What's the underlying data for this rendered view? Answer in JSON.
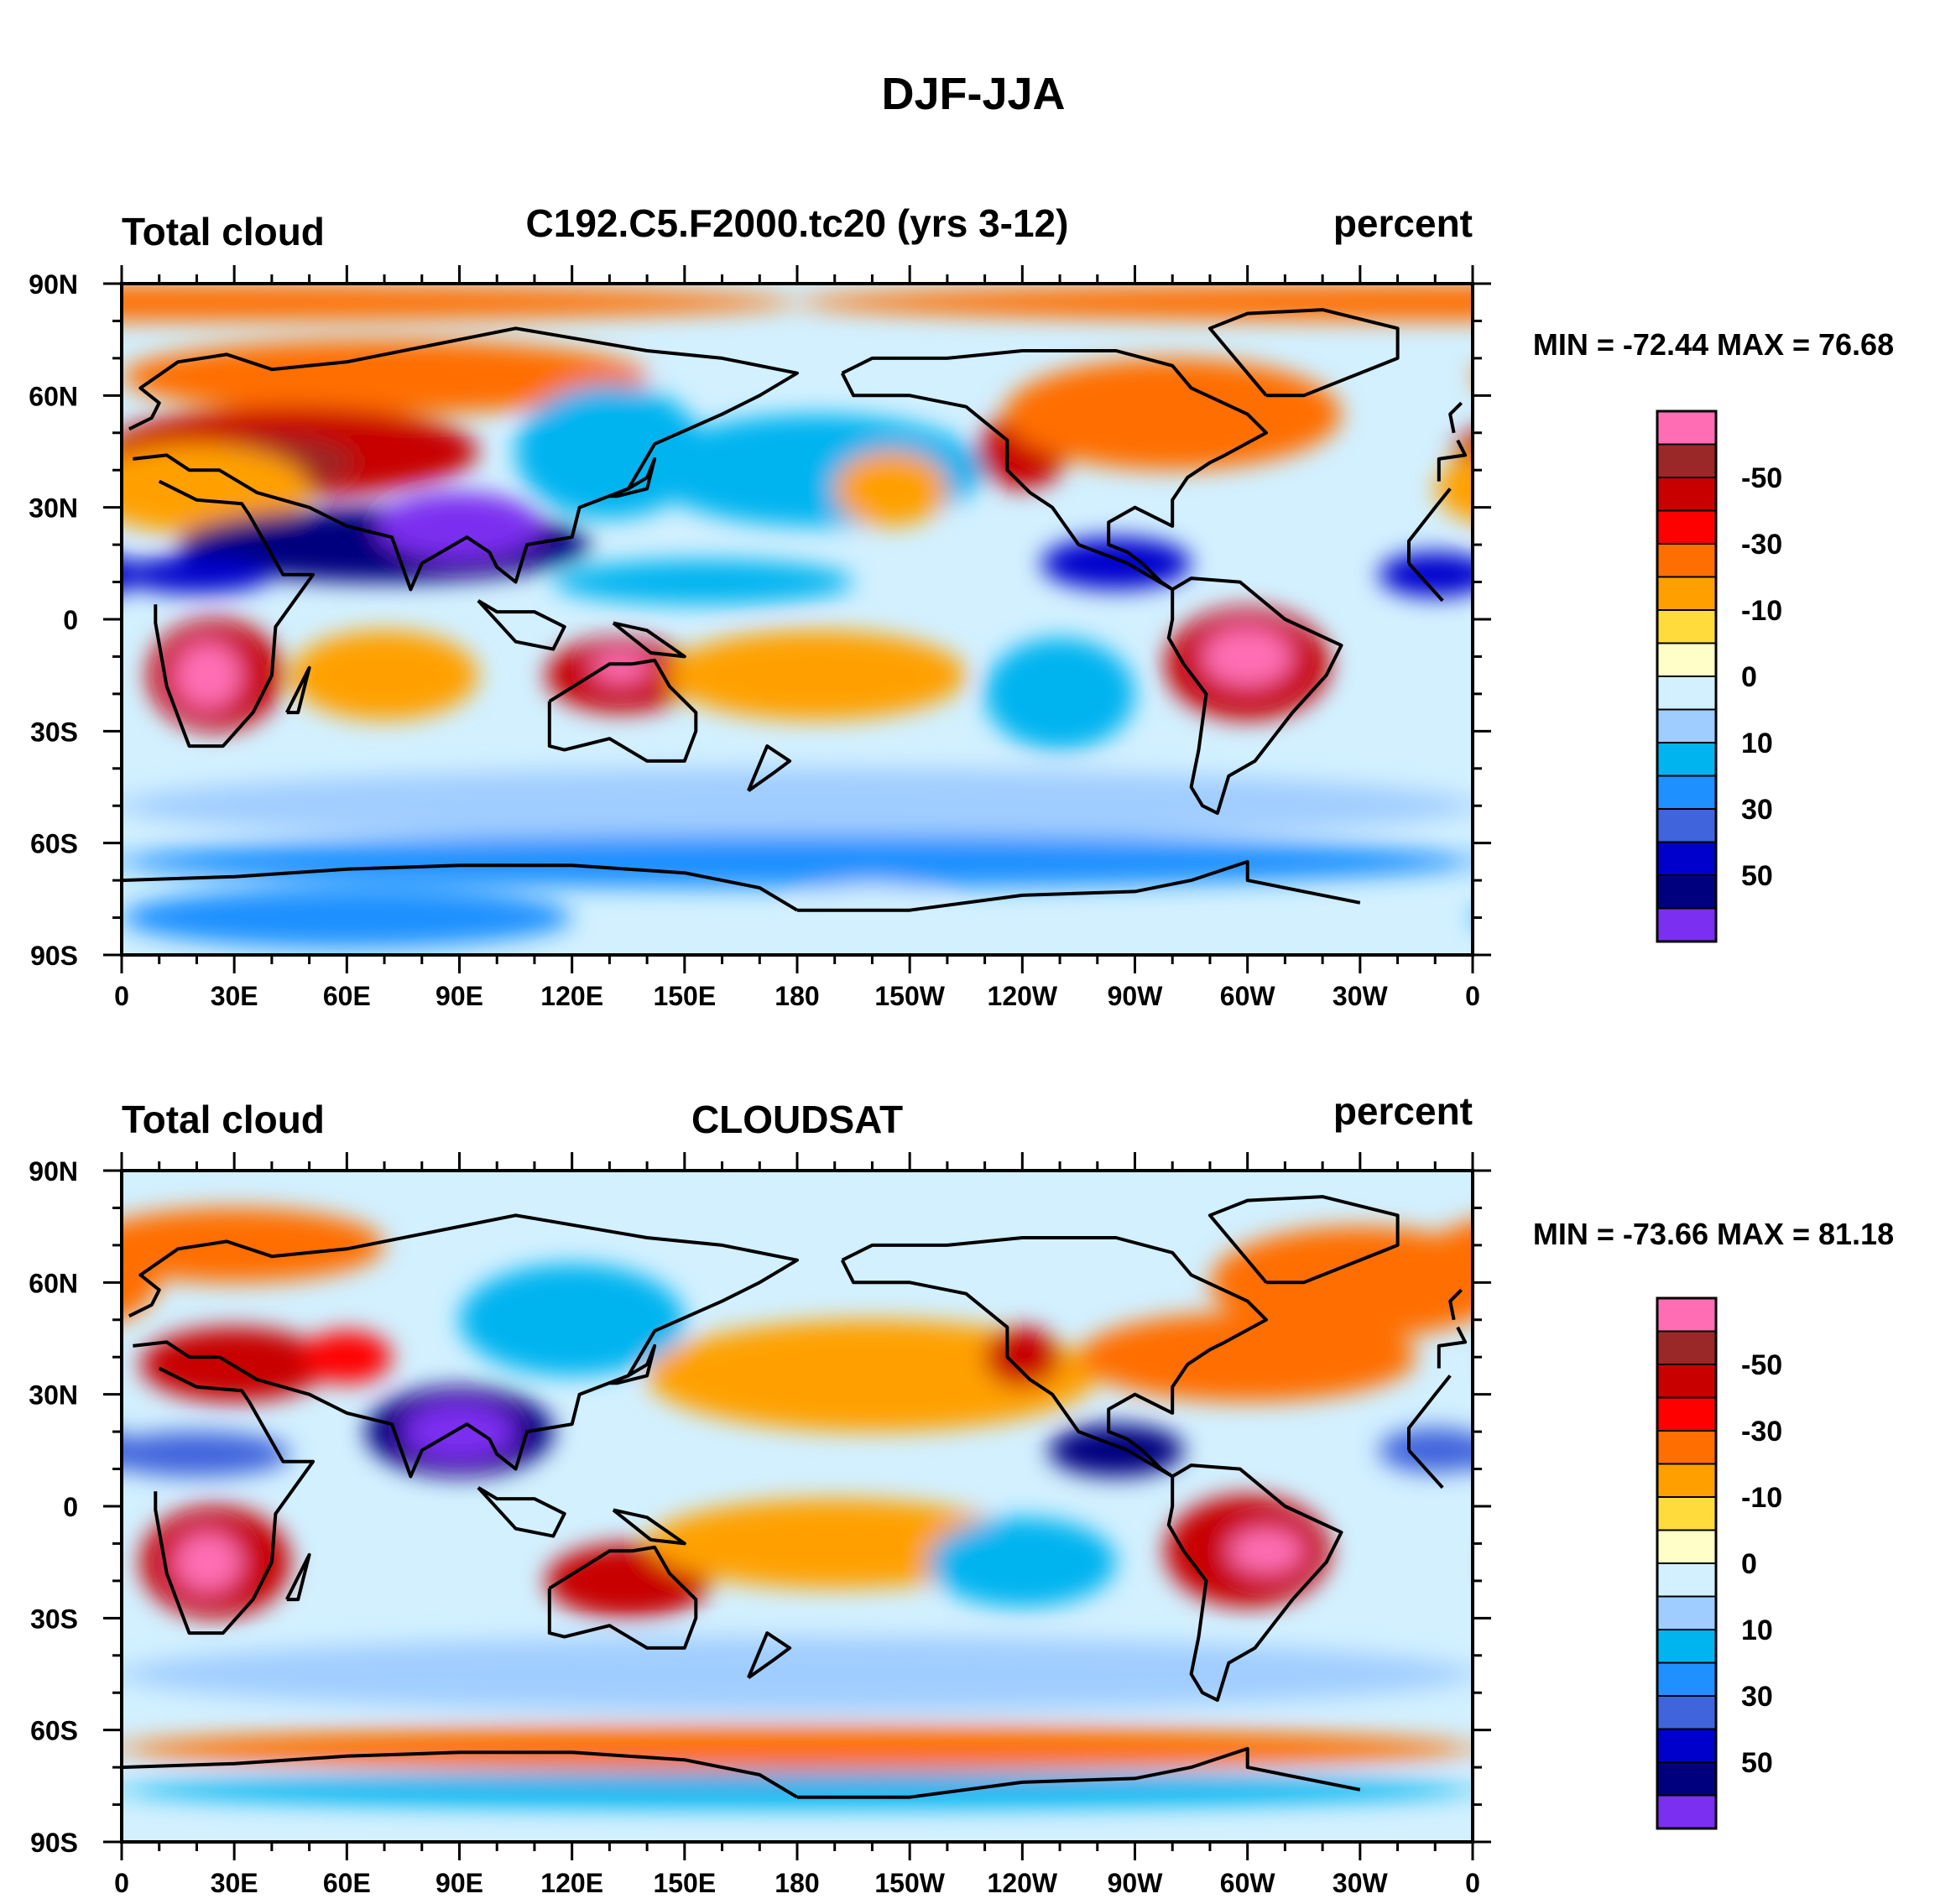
{
  "title": "DJF-JJA",
  "colorbar": {
    "colors": [
      "#7b2ff0",
      "#00007f",
      "#0000cc",
      "#3f64dc",
      "#1e90ff",
      "#00b4f0",
      "#a0cdff",
      "#d2f0ff",
      "#fffdc8",
      "#ffdc3c",
      "#ffa000",
      "#ff6e00",
      "#ff0000",
      "#c80000",
      "#9b2828",
      "#ff6eb4"
    ],
    "labels": [
      "-50",
      "-30",
      "-10",
      "0",
      "10",
      "30",
      "50"
    ]
  },
  "axes": {
    "lat_labels": [
      "90N",
      "60N",
      "30N",
      "0",
      "30S",
      "60S",
      "90S"
    ],
    "lon_labels": [
      "0",
      "30E",
      "60E",
      "90E",
      "120E",
      "150E",
      "180",
      "150W",
      "120W",
      "90W",
      "60W",
      "30W",
      "0"
    ]
  },
  "panels": [
    {
      "left_label": "Total cloud",
      "center_label": "C192.C5.F2000.tc20 (yrs 3-12)",
      "right_label": "percent",
      "minmax": "MIN = -72.44 MAX =  76.68",
      "features": [
        {
          "lon": 0,
          "lat": 85,
          "level": 11,
          "rx": 180,
          "ry": 5
        },
        {
          "lon": 70,
          "lat": 65,
          "level": 11,
          "rx": 70,
          "ry": 10
        },
        {
          "lon": 45,
          "lat": 45,
          "level": 13,
          "rx": 50,
          "ry": 12
        },
        {
          "lon": 40,
          "lat": 42,
          "level": 14,
          "rx": 22,
          "ry": 7
        },
        {
          "lon": 20,
          "lat": 35,
          "level": 10,
          "rx": 30,
          "ry": 12
        },
        {
          "lon": 70,
          "lat": 20,
          "level": 1,
          "rx": 55,
          "ry": 10
        },
        {
          "lon": 90,
          "lat": 25,
          "level": 0,
          "rx": 22,
          "ry": 9
        },
        {
          "lon": 20,
          "lat": 12,
          "level": 2,
          "rx": 20,
          "ry": 5
        },
        {
          "lon": 130,
          "lat": 45,
          "level": 5,
          "rx": 25,
          "ry": 18
        },
        {
          "lon": 185,
          "lat": 40,
          "level": 5,
          "rx": 45,
          "ry": 15
        },
        {
          "lon": 205,
          "lat": 35,
          "level": 10,
          "rx": 15,
          "ry": 10
        },
        {
          "lon": 240,
          "lat": 45,
          "level": 13,
          "rx": 12,
          "ry": 10
        },
        {
          "lon": 280,
          "lat": 55,
          "level": 11,
          "rx": 45,
          "ry": 15
        },
        {
          "lon": 265,
          "lat": 15,
          "level": 2,
          "rx": 20,
          "ry": 7
        },
        {
          "lon": 350,
          "lat": 12,
          "level": 2,
          "rx": 15,
          "ry": 6
        },
        {
          "lon": 155,
          "lat": 10,
          "level": 5,
          "rx": 40,
          "ry": 6
        },
        {
          "lon": 25,
          "lat": -15,
          "level": 13,
          "rx": 18,
          "ry": 15
        },
        {
          "lon": 23,
          "lat": -15,
          "level": 15,
          "rx": 9,
          "ry": 9
        },
        {
          "lon": 70,
          "lat": -15,
          "level": 10,
          "rx": 25,
          "ry": 12
        },
        {
          "lon": 133,
          "lat": -15,
          "level": 13,
          "rx": 20,
          "ry": 10
        },
        {
          "lon": 133,
          "lat": -13,
          "level": 15,
          "rx": 8,
          "ry": 4
        },
        {
          "lon": 185,
          "lat": -15,
          "level": 10,
          "rx": 40,
          "ry": 12
        },
        {
          "lon": 300,
          "lat": -12,
          "level": 13,
          "rx": 22,
          "ry": 15
        },
        {
          "lon": 300,
          "lat": -10,
          "level": 15,
          "rx": 12,
          "ry": 8
        },
        {
          "lon": 250,
          "lat": -20,
          "level": 5,
          "rx": 20,
          "ry": 15
        },
        {
          "lon": 180,
          "lat": -50,
          "level": 6,
          "rx": 180,
          "ry": 10
        },
        {
          "lon": 180,
          "lat": -65,
          "level": 4,
          "rx": 180,
          "ry": 7
        },
        {
          "lon": 60,
          "lat": -80,
          "level": 4,
          "rx": 60,
          "ry": 8
        },
        {
          "lon": 200,
          "lat": -77,
          "level": 7,
          "rx": 20,
          "ry": 6
        }
      ]
    },
    {
      "left_label": "Total cloud",
      "center_label": "CLOUDSAT",
      "right_label": "percent",
      "minmax": "MIN = -73.66 MAX =  81.18",
      "features": [
        {
          "lon": 30,
          "lat": 70,
          "level": 11,
          "rx": 40,
          "ry": 10
        },
        {
          "lon": 330,
          "lat": 60,
          "level": 11,
          "rx": 40,
          "ry": 15
        },
        {
          "lon": 30,
          "lat": 38,
          "level": 13,
          "rx": 25,
          "ry": 10
        },
        {
          "lon": 60,
          "lat": 40,
          "level": 12,
          "rx": 12,
          "ry": 7
        },
        {
          "lon": 90,
          "lat": 20,
          "level": 1,
          "rx": 25,
          "ry": 12
        },
        {
          "lon": 90,
          "lat": 20,
          "level": 0,
          "rx": 15,
          "ry": 8
        },
        {
          "lon": 20,
          "lat": 14,
          "level": 3,
          "rx": 25,
          "ry": 6
        },
        {
          "lon": 120,
          "lat": 50,
          "level": 5,
          "rx": 30,
          "ry": 15
        },
        {
          "lon": 200,
          "lat": 35,
          "level": 10,
          "rx": 60,
          "ry": 15
        },
        {
          "lon": 240,
          "lat": 40,
          "level": 13,
          "rx": 10,
          "ry": 8
        },
        {
          "lon": 265,
          "lat": 15,
          "level": 1,
          "rx": 18,
          "ry": 7
        },
        {
          "lon": 300,
          "lat": 40,
          "level": 11,
          "rx": 45,
          "ry": 12
        },
        {
          "lon": 350,
          "lat": 15,
          "level": 3,
          "rx": 15,
          "ry": 6
        },
        {
          "lon": 25,
          "lat": -15,
          "level": 13,
          "rx": 20,
          "ry": 15
        },
        {
          "lon": 23,
          "lat": -15,
          "level": 15,
          "rx": 9,
          "ry": 8
        },
        {
          "lon": 135,
          "lat": -20,
          "level": 13,
          "rx": 22,
          "ry": 10
        },
        {
          "lon": 190,
          "lat": -10,
          "level": 10,
          "rx": 50,
          "ry": 12
        },
        {
          "lon": 300,
          "lat": -12,
          "level": 13,
          "rx": 22,
          "ry": 15
        },
        {
          "lon": 305,
          "lat": -12,
          "level": 15,
          "rx": 10,
          "ry": 6
        },
        {
          "lon": 240,
          "lat": -15,
          "level": 5,
          "rx": 25,
          "ry": 12
        },
        {
          "lon": 180,
          "lat": -65,
          "level": 11,
          "rx": 180,
          "ry": 6
        },
        {
          "lon": 180,
          "lat": -76,
          "level": 5,
          "rx": 180,
          "ry": 5
        },
        {
          "lon": 180,
          "lat": -45,
          "level": 6,
          "rx": 180,
          "ry": 10
        }
      ]
    }
  ]
}
